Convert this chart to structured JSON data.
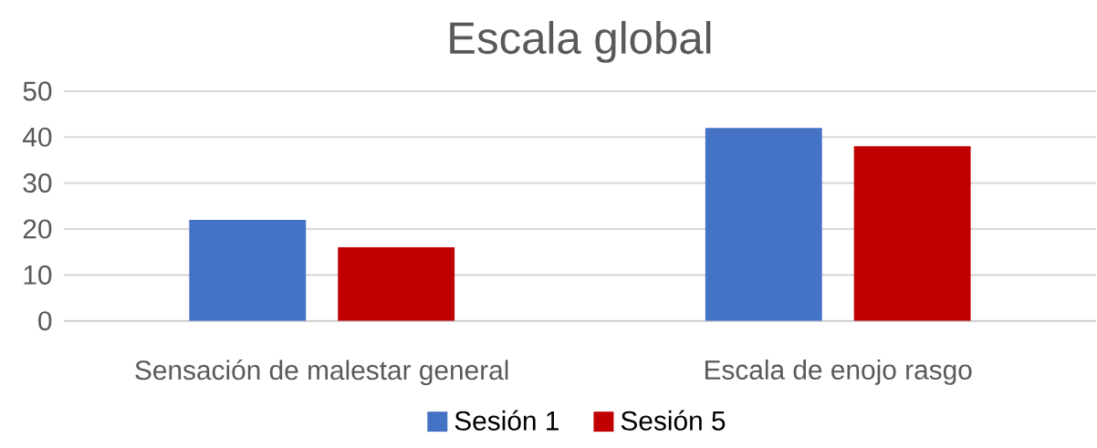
{
  "chart_data": {
    "type": "bar",
    "title": "Escala global",
    "categories": [
      "Sensación de malestar general",
      "Escala de enojo rasgo"
    ],
    "series": [
      {
        "name": "Sesión 1",
        "color": "#4472c4",
        "values": [
          22,
          42
        ]
      },
      {
        "name": "Sesión 5",
        "color": "#c00000",
        "values": [
          16,
          38
        ]
      }
    ],
    "ylim": [
      0,
      50
    ],
    "yticks": [
      0,
      10,
      20,
      30,
      40,
      50
    ],
    "grid": "y",
    "legend": "bottom"
  }
}
